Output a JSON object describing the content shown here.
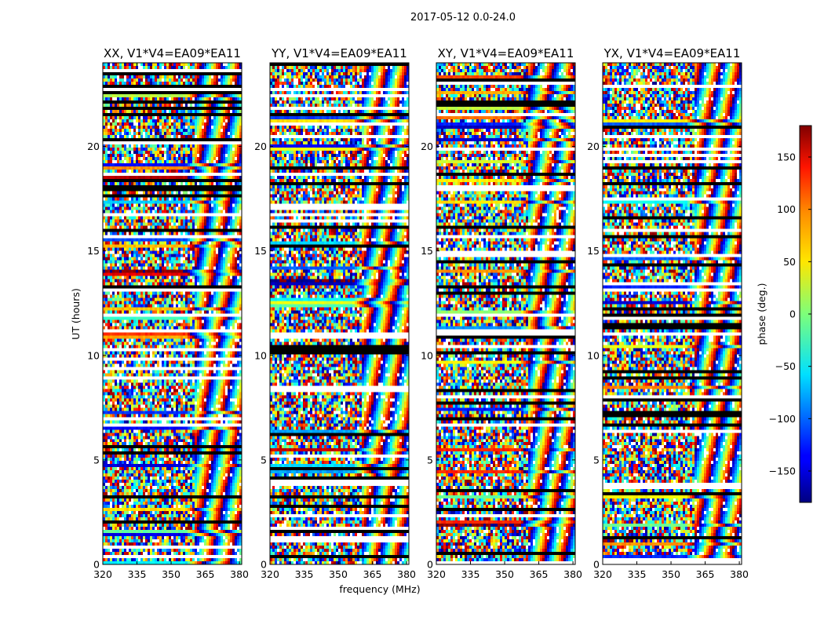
{
  "chart_data": {
    "type": "heatmap",
    "suptitle": "2017-05-12 0.0-24.0",
    "xlabel": "frequency (MHz)",
    "ylabel": "UT (hours)",
    "xlim": [
      320,
      381
    ],
    "ylim": [
      0,
      24
    ],
    "x_ticks": [
      320,
      335,
      350,
      365,
      380
    ],
    "y_ticks": [
      0,
      5,
      10,
      15,
      20
    ],
    "colorbar": {
      "label": "phase (deg.)",
      "range": [
        -180,
        180
      ],
      "colormap": "jet",
      "ticks": [
        150,
        100,
        50,
        0,
        -50,
        -100,
        -150
      ],
      "tick_labels": [
        "150",
        "100",
        "50",
        "0",
        "−50",
        "−100",
        "−150"
      ]
    },
    "panels": [
      {
        "title": "XX, V1*V4=EA09*EA11"
      },
      {
        "title": "YY, V1*V4=EA09*EA11"
      },
      {
        "title": "XY, V1*V4=EA09*EA11"
      },
      {
        "title": "YX, V1*V4=EA09*EA11"
      }
    ]
  }
}
